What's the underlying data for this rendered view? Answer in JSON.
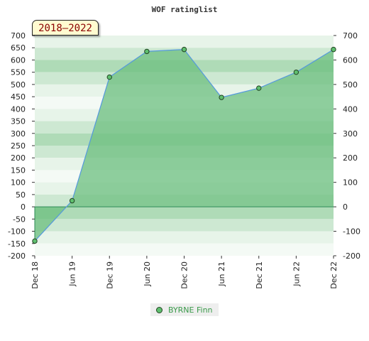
{
  "chart_data": {
    "type": "area",
    "title": "WOF ratinglist",
    "badge": "2018–2022",
    "categories": [
      "Dec 18",
      "Jun 19",
      "Dec 19",
      "Jun 20",
      "Dec 20",
      "Jun 21",
      "Dec 21",
      "Jun 22",
      "Dec 22"
    ],
    "series": [
      {
        "name": "BYRNE Finn",
        "values": [
          -140,
          25,
          530,
          635,
          643,
          447,
          485,
          550,
          643
        ]
      }
    ],
    "ylim": [
      -200,
      700
    ],
    "y_ticks_left": [
      700,
      650,
      600,
      550,
      500,
      450,
      400,
      350,
      300,
      250,
      200,
      150,
      100,
      50,
      0,
      -50,
      -100,
      -150,
      -200
    ],
    "y_ticks_right": [
      700,
      600,
      500,
      400,
      300,
      200,
      100,
      0,
      -100,
      -200
    ],
    "xlabel": "",
    "ylabel": "",
    "grid": true,
    "legend_position": "bottom",
    "colors": {
      "area_fill": "#6cbf7f",
      "line": "#5599dd",
      "marker_fill": "#5fbf6f",
      "marker_stroke": "#224422",
      "band_dark": "#9ed3a8",
      "band_light": "#f4faf5",
      "legend_text": "#3a9a4a"
    }
  }
}
